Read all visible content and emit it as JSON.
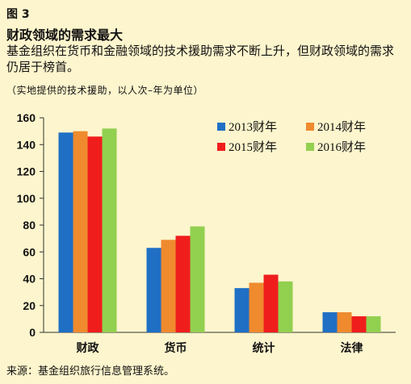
{
  "figure_label": "图 3",
  "title": "财政领域的需求最大",
  "subtitle": "基金组织在货币和金融领域的技术援助需求不断上升，但财政领域的需求仍居于榜首。",
  "note": "（实地提供的技术援助，以人次–年为单位）",
  "source": "来源：基金组织旅行信息管理系统。",
  "chart_data": {
    "type": "bar",
    "categories": [
      "财政",
      "货币",
      "统计",
      "法律"
    ],
    "ylim": [
      0,
      160
    ],
    "yticks": [
      0,
      20,
      40,
      60,
      80,
      100,
      120,
      140,
      160
    ],
    "grid": false,
    "legend_position": "top-right",
    "series": [
      {
        "name": "2013财年",
        "color": "#1f6fc5",
        "values": [
          149,
          63,
          33,
          15
        ]
      },
      {
        "name": "2014财年",
        "color": "#ef8a2e",
        "values": [
          150,
          69,
          37,
          15
        ]
      },
      {
        "name": "2015财年",
        "color": "#f01d1d",
        "values": [
          146,
          72,
          43,
          12
        ]
      },
      {
        "name": "2016财年",
        "color": "#92d050",
        "values": [
          152,
          79,
          38,
          12
        ]
      }
    ]
  }
}
